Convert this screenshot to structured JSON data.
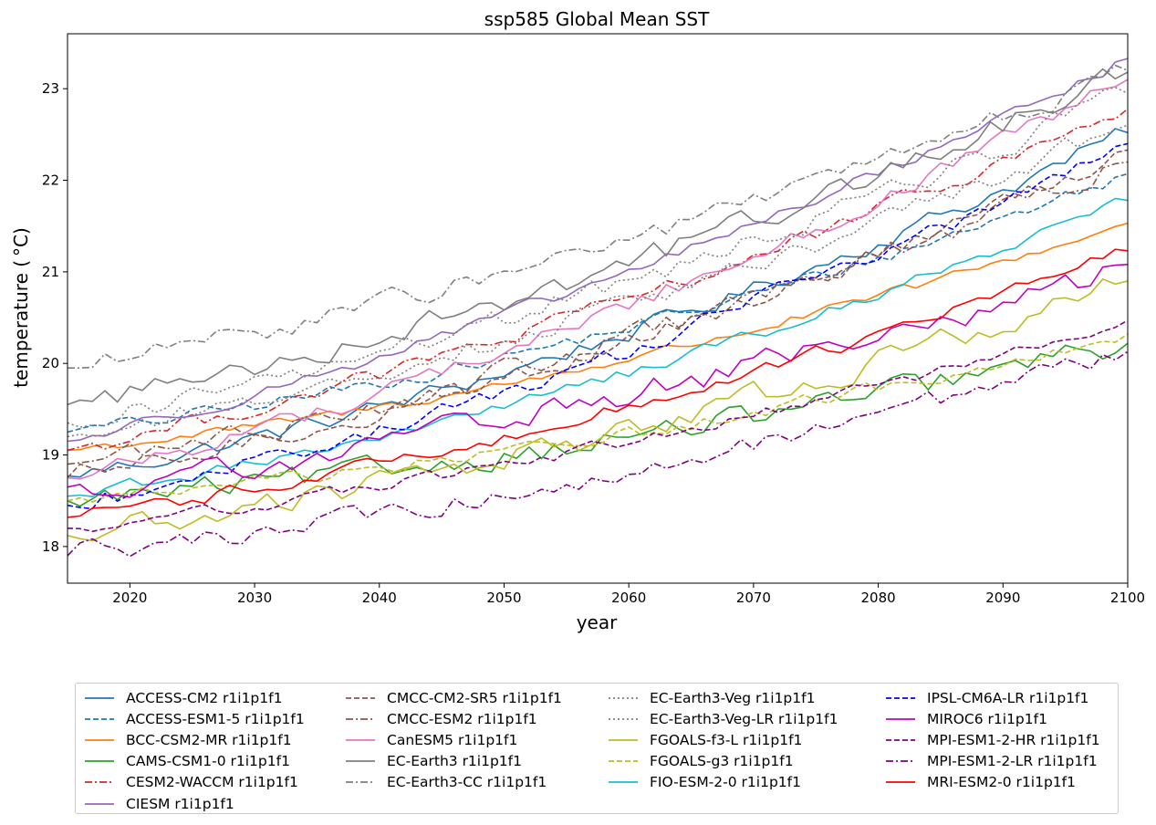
{
  "chart_data": {
    "type": "line",
    "title": "ssp585 Global Mean SST",
    "xlabel": "year",
    "ylabel": "temperature ($^\\circ$C)",
    "ylabel_display": "temperature ( °C)",
    "xlim": [
      2015,
      2100
    ],
    "ylim": [
      17.6,
      23.6
    ],
    "xticks": [
      2020,
      2030,
      2040,
      2050,
      2060,
      2070,
      2080,
      2090,
      2100
    ],
    "yticks": [
      18,
      19,
      20,
      21,
      22,
      23
    ],
    "grid": false,
    "legend_position": "bottom, outside, 4 columns",
    "x_start": 2015,
    "x_end": 2100,
    "series": [
      {
        "name": "ACCESS-CM2 r1i1p1f1",
        "color": "#1f77b4",
        "dash": "solid",
        "start": 18.77,
        "end": 22.52,
        "noise": 0.09,
        "curve": 0.45
      },
      {
        "name": "ACCESS-ESM1-5 r1i1p1f1",
        "color": "#1f77b4",
        "dash": "dashed",
        "start": 19.25,
        "end": 22.07,
        "noise": 0.07,
        "curve": 0.5
      },
      {
        "name": "BCC-CSM2-MR r1i1p1f1",
        "color": "#ff7f0e",
        "dash": "solid",
        "start": 19.05,
        "end": 21.53,
        "noise": 0.05,
        "curve": 0.5
      },
      {
        "name": "CAMS-CSM1-0 r1i1p1f1",
        "color": "#2ca02c",
        "dash": "solid",
        "start": 18.5,
        "end": 20.22,
        "noise": 0.12,
        "curve": 0.5
      },
      {
        "name": "CESM2-WACCM r1i1p1f1",
        "color": "#d62728",
        "dash": "dashdot",
        "start": 19.05,
        "end": 22.78,
        "noise": 0.08,
        "curve": 0.35
      },
      {
        "name": "CIESM r1i1p1f1",
        "color": "#9467bd",
        "dash": "solid",
        "start": 19.15,
        "end": 23.33,
        "noise": 0.06,
        "curve": 0.35
      },
      {
        "name": "CMCC-CM2-SR5 r1i1p1f1",
        "color": "#8c564b",
        "dash": "dashed",
        "start": 18.75,
        "end": 22.33,
        "noise": 0.1,
        "curve": 0.45
      },
      {
        "name": "CMCC-ESM2 r1i1p1f1",
        "color": "#8c564b",
        "dash": "dashdot",
        "start": 18.9,
        "end": 22.2,
        "noise": 0.11,
        "curve": 0.45
      },
      {
        "name": "CanESM5 r1i1p1f1",
        "color": "#e377c2",
        "dash": "solid",
        "start": 18.75,
        "end": 23.1,
        "noise": 0.09,
        "curve": 0.38
      },
      {
        "name": "EC-Earth3 r1i1p1f1",
        "color": "#7f7f7f",
        "dash": "solid",
        "start": 19.55,
        "end": 23.18,
        "noise": 0.12,
        "curve": 0.4
      },
      {
        "name": "EC-Earth3-CC r1i1p1f1",
        "color": "#7f7f7f",
        "dash": "dashdot",
        "start": 19.95,
        "end": 23.2,
        "noise": 0.1,
        "curve": 0.38
      },
      {
        "name": "EC-Earth3-Veg r1i1p1f1",
        "color": "#7f7f7f",
        "dash": "dotted",
        "start": 19.35,
        "end": 22.95,
        "noise": 0.11,
        "curve": 0.4
      },
      {
        "name": "EC-Earth3-Veg-LR r1i1p1f1",
        "color": "#7f7f7f",
        "dash": "dotted",
        "start": 19.2,
        "end": 22.6,
        "noise": 0.1,
        "curve": 0.4
      },
      {
        "name": "FGOALS-f3-L r1i1p1f1",
        "color": "#bcbd22",
        "dash": "solid",
        "start": 18.12,
        "end": 20.9,
        "noise": 0.13,
        "curve": 0.45
      },
      {
        "name": "FGOALS-g3 r1i1p1f1",
        "color": "#bcbd22",
        "dash": "dashed",
        "start": 18.5,
        "end": 20.32,
        "noise": 0.07,
        "curve": 0.5
      },
      {
        "name": "FIO-ESM-2-0 r1i1p1f1",
        "color": "#17becf",
        "dash": "solid",
        "start": 18.55,
        "end": 21.78,
        "noise": 0.06,
        "curve": 0.45
      },
      {
        "name": "IPSL-CM6A-LR r1i1p1f1",
        "color": "#0000ff",
        "dash": "dashed",
        "start": 18.45,
        "end": 22.4,
        "noise": 0.09,
        "curve": 0.4
      },
      {
        "name": "MIROC6 r1i1p1f1",
        "color": "#bf00bf",
        "dash": "solid",
        "start": 18.65,
        "end": 21.08,
        "noise": 0.13,
        "curve": 0.45
      },
      {
        "name": "MPI-ESM1-2-HR r1i1p1f1",
        "color": "#800080",
        "dash": "dashed",
        "start": 18.2,
        "end": 20.47,
        "noise": 0.06,
        "curve": 0.45
      },
      {
        "name": "MPI-ESM1-2-LR r1i1p1f1",
        "color": "#800080",
        "dash": "dashdot",
        "start": 17.9,
        "end": 20.13,
        "noise": 0.1,
        "curve": 0.45
      },
      {
        "name": "MRI-ESM2-0 r1i1p1f1",
        "color": "#ff0000",
        "dash": "solid",
        "start": 18.32,
        "end": 21.23,
        "noise": 0.07,
        "curve": 0.45
      }
    ]
  }
}
